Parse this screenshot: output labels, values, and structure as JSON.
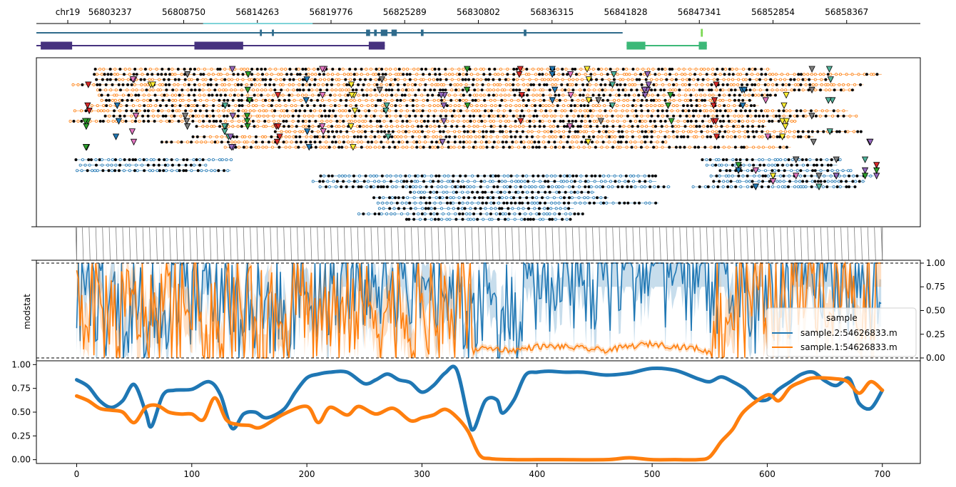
{
  "chart_data": [
    {
      "panel": "genome-coordinate-axis",
      "type": "axis",
      "chrom_label": "chr19",
      "ticks": [
        "56803237",
        "56808750",
        "56814263",
        "56819776",
        "56825289",
        "56830802",
        "56836315",
        "56841828",
        "56847341",
        "56852854",
        "56858367"
      ],
      "tick_values": [
        56803237,
        56808750,
        56814263,
        56819776,
        56825289,
        56830802,
        56836315,
        56841828,
        56847341,
        56852854,
        56858367
      ],
      "xlim": [
        56797724,
        56863880
      ]
    },
    {
      "panel": "gene-annotation-track",
      "type": "gene-models",
      "genes": [
        {
          "color": "#2f6b8c",
          "start": 56797724,
          "end": 56841600,
          "exons": [
            [
              56822400,
              56822700
            ],
            [
              56823500,
              56824000
            ],
            [
              56824300,
              56824700
            ],
            [
              56823000,
              56823200
            ],
            [
              56814450,
              56814600
            ],
            [
              56815350,
              56815500
            ],
            [
              56826500,
              56826700
            ],
            [
              56834200,
              56834400
            ]
          ]
        },
        {
          "color": "#46327e",
          "start": 56797724,
          "end": 56823800,
          "exons": [
            [
              56798050,
              56800400
            ],
            [
              56809550,
              56813200
            ],
            [
              56822600,
              56823800
            ]
          ]
        },
        {
          "color": "#3cb878",
          "start": 56841900,
          "end": 56847900,
          "exons": [
            [
              56841900,
              56843300
            ],
            [
              56847300,
              56847900
            ]
          ]
        },
        {
          "color": "#7ed957",
          "start": 56847450,
          "end": 56847600,
          "exons": [
            [
              56847450,
              56847600
            ]
          ]
        }
      ]
    },
    {
      "panel": "read-track",
      "type": "scatter",
      "modified_color": "#ff7f0e",
      "unmodified_color": "#1f77b4",
      "call_color": "#000000",
      "marker_colors": [
        "#2ca02c",
        "#d62728",
        "#1f77b4",
        "#e377c2",
        "#ffee33",
        "#7f7f7f",
        "#4fb39a",
        "#9467bd"
      ],
      "xlim": [
        -35,
        733
      ]
    },
    {
      "panel": "coordinate-links",
      "type": "links",
      "color": "#7f7f7f"
    },
    {
      "panel": "modstat-per-site",
      "type": "line",
      "ylabel": "modstat",
      "yticks": [
        "0.00",
        "0.25",
        "0.50",
        "0.75",
        "1.00"
      ],
      "ylim": [
        -0.03,
        1.03
      ],
      "hlines": [
        0,
        1
      ],
      "xlim": [
        -35,
        733
      ],
      "legend": {
        "title": "sample",
        "position": "center-right"
      },
      "series": [
        {
          "name": "sample.2:54626833.m",
          "color": "#1f77b4",
          "profile_x": [
            0,
            20,
            40,
            60,
            80,
            100,
            120,
            140,
            160,
            180,
            200,
            220,
            240,
            260,
            280,
            300,
            320,
            340,
            360,
            380,
            400,
            420,
            440,
            460,
            480,
            500,
            520,
            540,
            560,
            580,
            600,
            620,
            640,
            660,
            680,
            700
          ],
          "profile_y": [
            0.8,
            0.65,
            0.55,
            0.5,
            0.6,
            0.75,
            0.8,
            0.55,
            0.5,
            0.6,
            0.8,
            0.85,
            0.88,
            0.85,
            0.85,
            0.82,
            0.78,
            0.5,
            0.45,
            0.55,
            0.85,
            0.9,
            0.92,
            0.88,
            0.92,
            0.95,
            0.9,
            0.88,
            0.85,
            0.6,
            0.7,
            0.8,
            0.85,
            0.85,
            0.8,
            0.78
          ]
        },
        {
          "name": "sample.1:54626833.m",
          "color": "#ff7f0e",
          "profile_x": [
            0,
            20,
            40,
            60,
            80,
            100,
            120,
            140,
            160,
            180,
            200,
            220,
            240,
            260,
            280,
            300,
            320,
            340,
            345,
            360,
            380,
            400,
            420,
            440,
            460,
            480,
            500,
            520,
            540,
            550,
            560,
            580,
            600,
            620,
            640,
            660,
            680,
            700
          ],
          "profile_y": [
            0.6,
            0.5,
            0.45,
            0.55,
            0.45,
            0.5,
            0.5,
            0.45,
            0.4,
            0.45,
            0.5,
            0.45,
            0.55,
            0.5,
            0.5,
            0.45,
            0.5,
            0.45,
            0.1,
            0.1,
            0.08,
            0.12,
            0.12,
            0.1,
            0.08,
            0.12,
            0.15,
            0.12,
            0.1,
            0.05,
            0.4,
            0.6,
            0.7,
            0.75,
            0.8,
            0.85,
            0.8,
            0.78
          ]
        }
      ]
    },
    {
      "panel": "modstat-smoothed",
      "type": "line",
      "yticks": [
        "0.00",
        "0.25",
        "0.50",
        "0.75",
        "1.00"
      ],
      "ylim": [
        -0.04,
        1.04
      ],
      "xticks": [
        "0",
        "100",
        "200",
        "300",
        "400",
        "500",
        "600",
        "700"
      ],
      "xlim": [
        -35,
        733
      ],
      "series": [
        {
          "name": "sample.2:54626833.m",
          "color": "#1f77b4",
          "x": [
            0,
            10,
            20,
            30,
            40,
            50,
            60,
            65,
            75,
            85,
            100,
            115,
            125,
            135,
            145,
            155,
            165,
            180,
            190,
            200,
            210,
            220,
            235,
            250,
            260,
            270,
            280,
            290,
            300,
            310,
            320,
            330,
            340,
            345,
            355,
            365,
            370,
            380,
            390,
            400,
            410,
            425,
            440,
            460,
            480,
            500,
            520,
            540,
            550,
            560,
            570,
            580,
            590,
            600,
            610,
            620,
            630,
            640,
            650,
            660,
            670,
            675,
            680,
            690,
            700
          ],
          "y": [
            0.84,
            0.77,
            0.62,
            0.55,
            0.62,
            0.79,
            0.5,
            0.35,
            0.68,
            0.73,
            0.74,
            0.82,
            0.68,
            0.33,
            0.48,
            0.5,
            0.44,
            0.53,
            0.71,
            0.86,
            0.9,
            0.92,
            0.92,
            0.8,
            0.84,
            0.9,
            0.84,
            0.81,
            0.71,
            0.78,
            0.91,
            0.95,
            0.45,
            0.32,
            0.62,
            0.63,
            0.49,
            0.63,
            0.89,
            0.92,
            0.93,
            0.92,
            0.92,
            0.89,
            0.91,
            0.96,
            0.94,
            0.85,
            0.82,
            0.87,
            0.82,
            0.75,
            0.64,
            0.63,
            0.74,
            0.82,
            0.9,
            0.92,
            0.83,
            0.78,
            0.86,
            0.76,
            0.59,
            0.54,
            0.73
          ]
        },
        {
          "name": "sample.1:54626833.m",
          "color": "#ff7f0e",
          "x": [
            0,
            10,
            20,
            30,
            40,
            50,
            60,
            70,
            80,
            90,
            100,
            110,
            120,
            130,
            140,
            150,
            160,
            180,
            200,
            210,
            220,
            235,
            245,
            260,
            275,
            290,
            300,
            310,
            320,
            330,
            340,
            350,
            360,
            380,
            400,
            420,
            460,
            480,
            500,
            520,
            540,
            550,
            560,
            570,
            580,
            600,
            610,
            620,
            630,
            640,
            660,
            670,
            680,
            690,
            700
          ],
          "y": [
            0.67,
            0.62,
            0.54,
            0.52,
            0.5,
            0.39,
            0.55,
            0.57,
            0.5,
            0.48,
            0.48,
            0.42,
            0.65,
            0.42,
            0.37,
            0.36,
            0.34,
            0.48,
            0.56,
            0.39,
            0.55,
            0.47,
            0.56,
            0.48,
            0.54,
            0.41,
            0.44,
            0.47,
            0.53,
            0.45,
            0.3,
            0.05,
            0.01,
            0.0,
            0.0,
            0.0,
            0.0,
            0.02,
            0.0,
            0.0,
            0.0,
            0.03,
            0.19,
            0.32,
            0.51,
            0.68,
            0.62,
            0.76,
            0.82,
            0.86,
            0.85,
            0.82,
            0.7,
            0.82,
            0.73
          ]
        }
      ]
    }
  ]
}
